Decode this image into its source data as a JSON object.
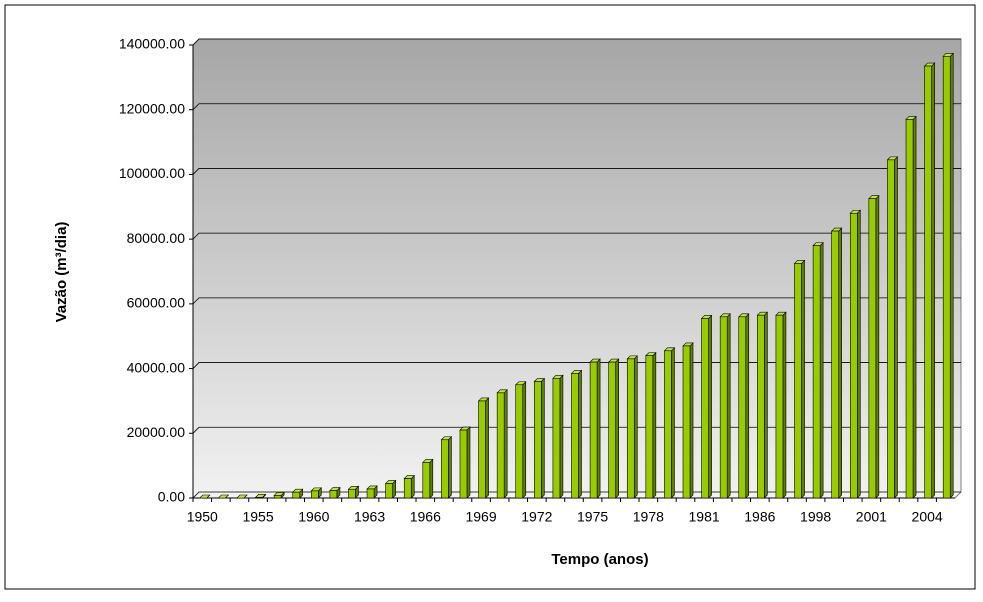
{
  "chart_data": {
    "type": "bar",
    "x_label": "Tempo (anos)",
    "y_label": "Vazão (m³/dia)",
    "categories": [
      "1950",
      null,
      null,
      "1955",
      null,
      null,
      "1960",
      null,
      null,
      "1963",
      null,
      null,
      "1966",
      null,
      null,
      "1969",
      null,
      null,
      "1972",
      null,
      null,
      "1975",
      null,
      null,
      "1978",
      null,
      null,
      "1981",
      null,
      null,
      "1986",
      null,
      null,
      "1998",
      null,
      null,
      "2001",
      null,
      null,
      "2004",
      null
    ],
    "values": [
      0,
      0,
      0,
      200,
      800,
      1800,
      2200,
      2300,
      2700,
      2800,
      4500,
      6000,
      11000,
      18000,
      21000,
      30000,
      32500,
      35000,
      36000,
      37000,
      38500,
      42000,
      42000,
      43000,
      44000,
      45500,
      47000,
      55500,
      56000,
      56000,
      56500,
      56500,
      72500,
      78000,
      82500,
      88000,
      92500,
      104500,
      117000,
      133500,
      136500
    ],
    "color": "#99cc00",
    "ylim": [
      0,
      140000
    ],
    "yticks": [
      {
        "value": 0,
        "label": "0.00"
      },
      {
        "value": 20000,
        "label": "20000.00"
      },
      {
        "value": 40000,
        "label": "40000.00"
      },
      {
        "value": 60000,
        "label": "60000.00"
      },
      {
        "value": 80000,
        "label": "80000.00"
      },
      {
        "value": 100000,
        "label": "100000.00"
      },
      {
        "value": 120000,
        "label": "120000.00"
      },
      {
        "value": 140000,
        "label": "140000.00"
      }
    ],
    "grid": true
  }
}
